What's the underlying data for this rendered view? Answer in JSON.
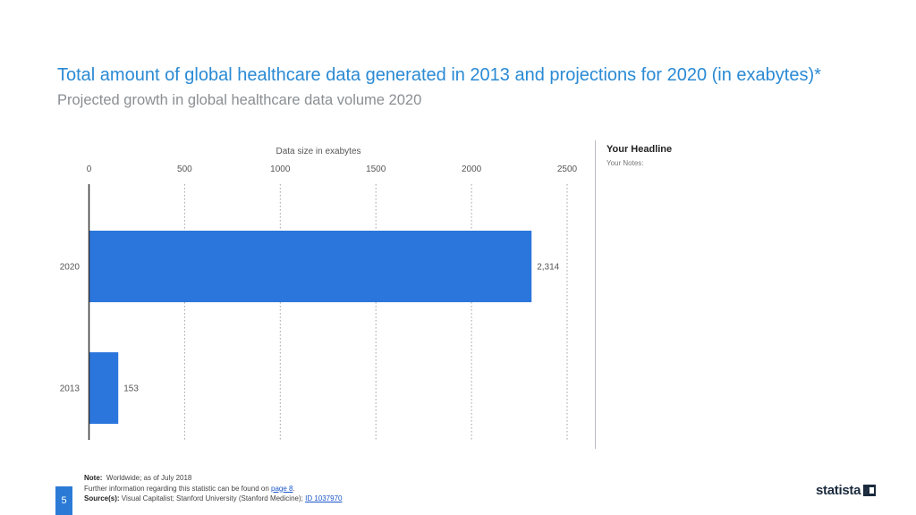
{
  "header": {
    "title": "Total amount of global healthcare data generated in 2013 and projections for 2020 (in exabytes)*",
    "subtitle": "Projected growth in global healthcare data volume 2020"
  },
  "side_panel": {
    "headline": "Your Headline",
    "notes": "Your Notes:"
  },
  "footer": {
    "note_label": "Note:",
    "note_text": "Worldwide; as of July 2018",
    "further_text": "Further information regarding this statistic can be found on",
    "further_link": "page 8",
    "source_label": "Source(s):",
    "source_text": "Visual Capitalist; Stanford University (Stanford Medicine);",
    "source_link": "ID 1037970"
  },
  "page_number": "5",
  "brand": {
    "logo_text": "statista"
  },
  "colors": {
    "bar": "#2b76dc",
    "accent": "#2a8ad4"
  },
  "chart_data": {
    "type": "bar",
    "orientation": "horizontal",
    "title": "Total amount of global healthcare data generated in 2013 and projections for 2020 (in exabytes)*",
    "xlabel": "Data size in exabytes",
    "ylabel": "",
    "xlim": [
      0,
      2500
    ],
    "ticks": [
      0,
      500,
      1000,
      1500,
      2000,
      2500
    ],
    "tick_labels": [
      "0",
      "500",
      "1000",
      "1500",
      "2000",
      "2500"
    ],
    "categories": [
      "2020",
      "2013"
    ],
    "values": [
      2314,
      153
    ],
    "value_labels": [
      "2,314",
      "153"
    ],
    "grid": true
  }
}
